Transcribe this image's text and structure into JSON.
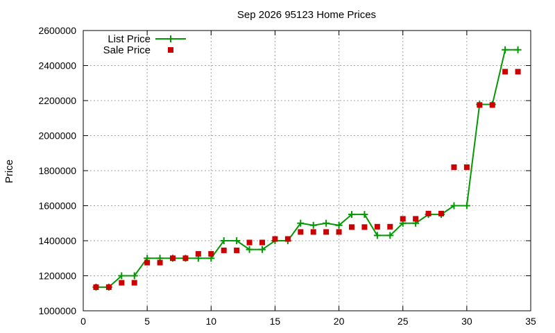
{
  "chart_data": {
    "type": "line",
    "title": "Sep 2026 95123 Home Prices",
    "xlabel": "",
    "ylabel": "Price",
    "xlim": [
      0,
      35
    ],
    "ylim": [
      1000000,
      2600000
    ],
    "xticks": [
      0,
      5,
      10,
      15,
      20,
      25,
      30,
      35
    ],
    "yticks": [
      1000000,
      1200000,
      1400000,
      1600000,
      1800000,
      2000000,
      2200000,
      2400000,
      2600000
    ],
    "grid": true,
    "legend_position": "top-left",
    "x": [
      1,
      2,
      3,
      4,
      5,
      6,
      7,
      8,
      9,
      10,
      11,
      12,
      13,
      14,
      15,
      16,
      17,
      18,
      19,
      20,
      21,
      22,
      23,
      24,
      25,
      26,
      27,
      28,
      29,
      30,
      31,
      32,
      33,
      34
    ],
    "series": [
      {
        "name": "List Price",
        "style": "line-with-plus-markers",
        "color": "#009900",
        "values": [
          1135000,
          1135000,
          1200000,
          1200000,
          1300000,
          1300000,
          1300000,
          1300000,
          1300000,
          1300000,
          1400000,
          1400000,
          1350000,
          1350000,
          1400000,
          1400000,
          1500000,
          1488000,
          1500000,
          1488000,
          1550000,
          1550000,
          1430000,
          1430000,
          1500000,
          1500000,
          1550000,
          1550000,
          1600000,
          1600000,
          2178000,
          2178000,
          2490000,
          2490000
        ]
      },
      {
        "name": "Sale Price",
        "style": "square-markers",
        "color": "#cc0000",
        "values": [
          1135000,
          1135000,
          1160000,
          1160000,
          1275000,
          1275000,
          1300000,
          1300000,
          1325000,
          1325000,
          1345000,
          1345000,
          1390000,
          1390000,
          1410000,
          1410000,
          1450000,
          1450000,
          1450000,
          1450000,
          1478000,
          1478000,
          1480000,
          1480000,
          1525000,
          1525000,
          1555000,
          1555000,
          1820000,
          1820000,
          2175000,
          2175000,
          2365000,
          2365000
        ]
      }
    ]
  }
}
